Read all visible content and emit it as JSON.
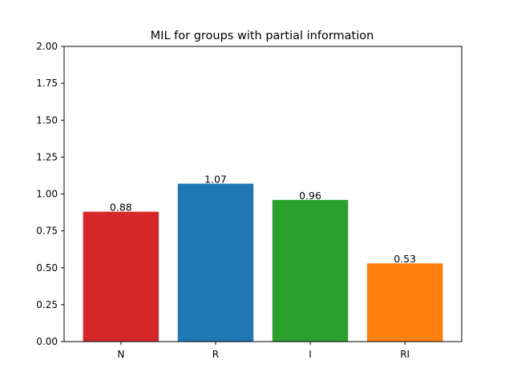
{
  "chart_data": {
    "type": "bar",
    "title": "MIL for groups with partial information",
    "xlabel": "",
    "ylabel": "",
    "categories": [
      "N",
      "R",
      "I",
      "RI"
    ],
    "values": [
      0.88,
      1.07,
      0.96,
      0.53
    ],
    "data_labels": [
      "0.88",
      "1.07",
      "0.96",
      "0.53"
    ],
    "bar_colors": [
      "#d62728",
      "#1f77b4",
      "#2ca02c",
      "#ff7f0e"
    ],
    "ylim": [
      0,
      2.0
    ],
    "yticks": [
      0.0,
      0.25,
      0.5,
      0.75,
      1.0,
      1.25,
      1.5,
      1.75,
      2.0
    ],
    "ytick_labels": [
      "0.00",
      "0.25",
      "0.50",
      "0.75",
      "1.00",
      "1.25",
      "1.50",
      "1.75",
      "2.00"
    ],
    "grid": false,
    "legend": "none"
  }
}
